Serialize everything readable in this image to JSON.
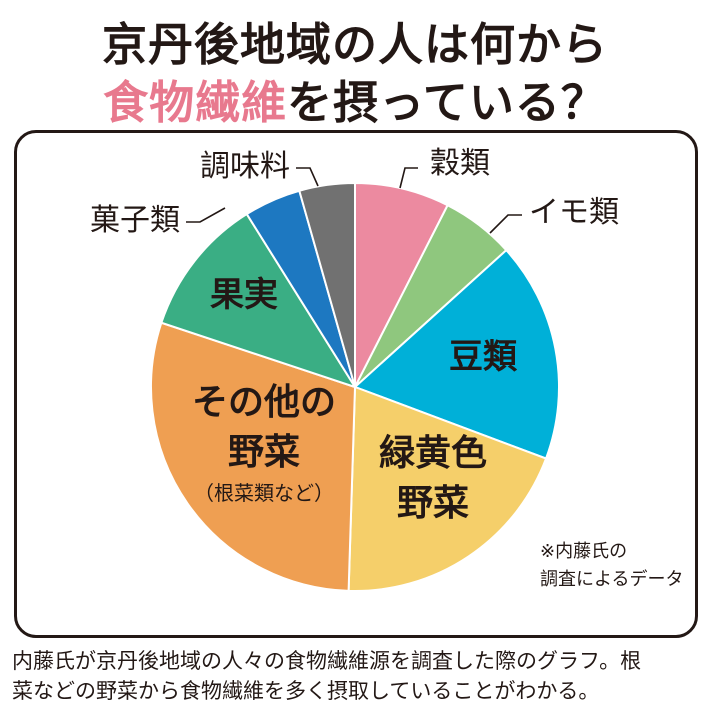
{
  "title": {
    "line1": "京丹後地域の人は何から",
    "line2_highlight": "食物繊維",
    "line2_rest": "を摂っている？"
  },
  "note": [
    "※内藤氏の",
    "調査によるデータ"
  ],
  "caption": [
    "内藤氏が京丹後地域の人々の食物繊維源を調査した際のグラフ。根",
    "菜などの野菜から食物繊維を多く摂取していることがわかる。"
  ],
  "colors": {
    "title_highlight": "#e8798e",
    "text": "#231815"
  },
  "chart_data": {
    "type": "pie",
    "start": "12 o'clock, clockwise",
    "slices": [
      {
        "label": "穀類",
        "value": 7.5,
        "color": "#ec8aa0",
        "label_style": "outside"
      },
      {
        "label": "イモ類",
        "value": 5.8,
        "color": "#8fc77e",
        "label_style": "outside"
      },
      {
        "label": "豆類",
        "value": 17.4,
        "color": "#00b0d8",
        "label_style": "inside"
      },
      {
        "label": "緑黄色野菜",
        "lines": [
          "緑黄色",
          "野菜"
        ],
        "value": 19.8,
        "color": "#f5cf6a",
        "label_style": "inside"
      },
      {
        "label": "その他の野菜",
        "lines": [
          "その他の",
          "野菜"
        ],
        "sublabel": "（根菜類など）",
        "value": 29.6,
        "color": "#ef9f52",
        "label_style": "inside"
      },
      {
        "label": "果実",
        "value": 11.0,
        "color": "#3aae84",
        "label_style": "inside"
      },
      {
        "label": "菓子類",
        "value": 4.5,
        "color": "#1d78c1",
        "label_style": "outside"
      },
      {
        "label": "調味料",
        "value": 4.4,
        "color": "#717171",
        "label_style": "outside"
      }
    ]
  }
}
